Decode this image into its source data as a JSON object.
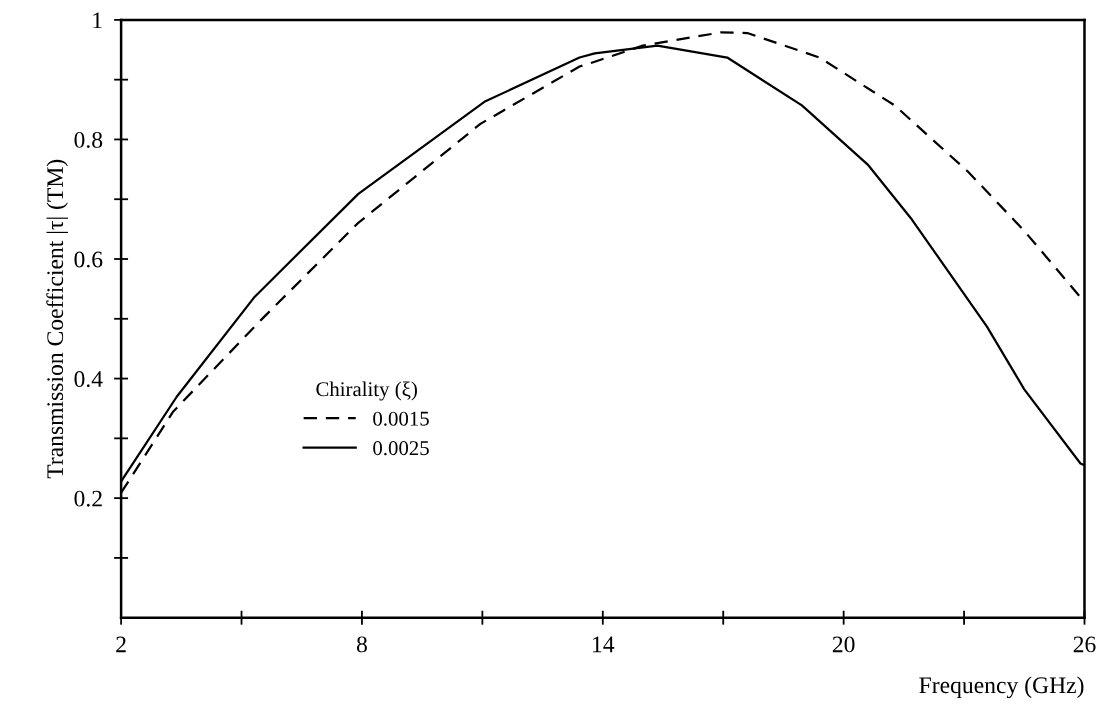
{
  "chart_data": {
    "type": "line",
    "xlabel": "Frequency (GHz)",
    "ylabel": "Transmission Coefficient |τ| (TM)",
    "legend_title": "Chirality (ξ)",
    "legend": "center left",
    "xlim": [
      2,
      26
    ],
    "ylim": [
      0,
      1
    ],
    "xticks": [
      2,
      {
        "value": 5,
        "label": null
      },
      8,
      {
        "value": 11,
        "label": null
      },
      14,
      {
        "value": 17,
        "label": null
      },
      20,
      {
        "value": 23,
        "label": null
      },
      26
    ],
    "yticks": [
      {
        "value": 0.1,
        "label": null
      },
      0.2,
      {
        "value": 0.3,
        "label": null
      },
      0.4,
      {
        "value": 0.5,
        "label": null
      },
      0.6,
      {
        "value": 0.7,
        "label": null
      },
      0.8,
      {
        "value": 0.9,
        "label": null
      },
      1
    ],
    "grid": false,
    "series": [
      {
        "name": "0.0015",
        "color": "#000000",
        "line_style": "dashed",
        "x": [
          2,
          3.3,
          5.5,
          7.9,
          10.95,
          13.42,
          13.8,
          15.0,
          16.94,
          17.6,
          19.4,
          21.27,
          23.1,
          24.5,
          25.9,
          26
        ],
        "values": [
          0.209,
          0.345,
          0.499,
          0.66,
          0.826,
          0.922,
          0.93,
          0.957,
          0.979,
          0.978,
          0.937,
          0.857,
          0.746,
          0.647,
          0.536,
          0.535
        ]
      },
      {
        "name": "0.0025",
        "color": "#000000",
        "line_style": "solid",
        "x": [
          2,
          3.39,
          5.33,
          7.91,
          11.05,
          13.42,
          13.8,
          15.36,
          17.1,
          18.96,
          20.6,
          21.7,
          23.57,
          24.5,
          25.9,
          26
        ],
        "values": [
          0.228,
          0.37,
          0.537,
          0.709,
          0.863,
          0.937,
          0.944,
          0.957,
          0.937,
          0.857,
          0.758,
          0.666,
          0.487,
          0.382,
          0.258,
          0.255
        ]
      }
    ]
  }
}
